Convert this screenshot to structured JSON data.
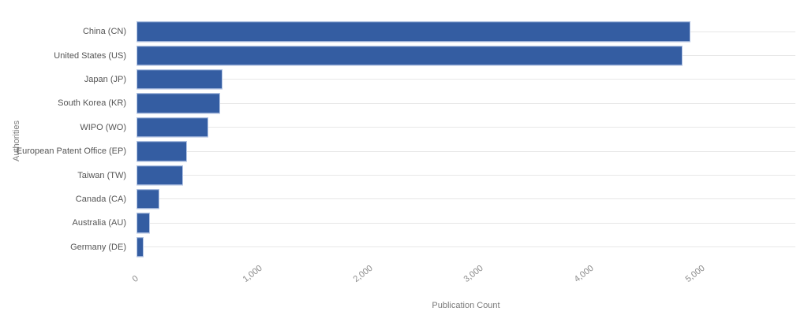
{
  "chart_data": {
    "type": "bar",
    "orientation": "horizontal",
    "title": "",
    "xlabel": "Publication Count",
    "ylabel": "Authorities",
    "categories": [
      "China (CN)",
      "United States (US)",
      "Japan (JP)",
      "South Korea (KR)",
      "WIPO (WO)",
      "European Patent Office (EP)",
      "Taiwan (TW)",
      "Canada (CA)",
      "Australia (AU)",
      "Germany (DE)"
    ],
    "values": [
      4995,
      4925,
      765,
      745,
      635,
      445,
      405,
      195,
      110,
      50
    ],
    "xlim": [
      0,
      5960
    ],
    "xticks": [
      {
        "label": "0",
        "value": 0
      },
      {
        "label": "1,000",
        "value": 1000
      },
      {
        "label": "2,000",
        "value": 2000
      },
      {
        "label": "3,000",
        "value": 3000
      },
      {
        "label": "4,000",
        "value": 4000
      },
      {
        "label": "5,000",
        "value": 5000
      }
    ],
    "grid": {
      "row_gridlines": true,
      "vertical_gridlines": false
    },
    "legend": "none",
    "colors": {
      "bar_fill": "#345da2",
      "bar_stroke": "#b6c7e6",
      "gridline": "#e7e7e7",
      "category_text": "#555555",
      "tick_text": "#8c8c8c",
      "axis_title_text": "#7a7a7a",
      "background": "#ffffff"
    }
  }
}
